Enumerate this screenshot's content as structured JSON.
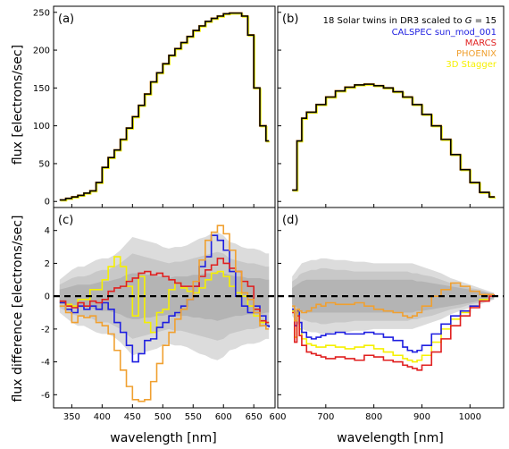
{
  "chart_data": {
    "type": "line",
    "xlabel": "wavelength [nm]",
    "ylabel_top": "flux [electrons/sec]",
    "ylabel_bottom": "flux difference [electrons/sec]",
    "legend_title": "18 Solar twins in DR3 scaled to G = 15",
    "legend_placement": "top-right",
    "grid": false,
    "colors": {
      "data": "#000000",
      "CALSPEC sun_mod_001": "#1f1fe0",
      "MARCS": "#e01f1f",
      "PHOENIX": "#f0a030",
      "3D Stagger": "#f5f000",
      "band_outer": "#dcdcdc",
      "band_mid": "#c8c8c8",
      "band_inner": "#b4b4b4"
    },
    "panels": [
      {
        "id": "a",
        "label": "(a)",
        "band": "BP",
        "xlim": [
          320,
          685
        ],
        "ylim": [
          -8,
          258
        ],
        "xticks": [
          350,
          400,
          450,
          500,
          550,
          600,
          650
        ],
        "yticks": [
          0,
          50,
          100,
          150,
          200,
          250
        ],
        "x": [
          330,
          340,
          350,
          360,
          370,
          380,
          390,
          400,
          410,
          420,
          430,
          440,
          450,
          460,
          470,
          480,
          490,
          500,
          510,
          520,
          530,
          540,
          550,
          560,
          570,
          580,
          590,
          600,
          610,
          620,
          630,
          640,
          650,
          660,
          670,
          675
        ],
        "flux": [
          2,
          4,
          6,
          8,
          11,
          14,
          25,
          45,
          58,
          68,
          82,
          97,
          112,
          127,
          142,
          158,
          170,
          182,
          193,
          202,
          210,
          218,
          226,
          232,
          238,
          242,
          245,
          248,
          249,
          249,
          245,
          220,
          150,
          100,
          80,
          80
        ]
      },
      {
        "id": "b",
        "label": "(b)",
        "band": "RP",
        "xlim": [
          600,
          1070
        ],
        "ylim": [
          -8,
          258
        ],
        "xticks": [
          600,
          700,
          800,
          900,
          1000
        ],
        "yticks": [
          0,
          50,
          100,
          150,
          200,
          250
        ],
        "x": [
          630,
          640,
          650,
          660,
          680,
          700,
          720,
          740,
          760,
          780,
          800,
          820,
          840,
          860,
          880,
          900,
          920,
          940,
          960,
          980,
          1000,
          1020,
          1040,
          1050
        ],
        "flux": [
          15,
          80,
          110,
          118,
          128,
          138,
          146,
          151,
          154,
          155,
          153,
          150,
          145,
          138,
          128,
          115,
          100,
          82,
          62,
          42,
          25,
          12,
          6,
          5
        ]
      },
      {
        "id": "c",
        "label": "(c)",
        "band": "BP",
        "xlim": [
          320,
          685
        ],
        "ylim": [
          -6.8,
          5.4
        ],
        "xticks": [
          350,
          400,
          450,
          500,
          550,
          600,
          650
        ],
        "yticks": [
          -6,
          -4,
          -2,
          0,
          2,
          4
        ],
        "x": [
          330,
          340,
          350,
          360,
          370,
          380,
          390,
          400,
          410,
          420,
          430,
          440,
          450,
          460,
          470,
          480,
          490,
          500,
          510,
          520,
          530,
          540,
          550,
          560,
          570,
          580,
          590,
          600,
          610,
          620,
          630,
          640,
          650,
          660,
          670,
          675
        ],
        "band_outer": [
          1.0,
          1.3,
          1.6,
          1.8,
          1.8,
          2.0,
          2.2,
          2.3,
          2.3,
          2.5,
          2.8,
          3.2,
          3.6,
          3.5,
          3.4,
          3.3,
          3.2,
          3.0,
          2.9,
          3.0,
          3.0,
          3.1,
          3.3,
          3.5,
          3.6,
          3.8,
          3.9,
          3.7,
          3.3,
          3.2,
          3.0,
          2.9,
          2.9,
          2.8,
          2.6,
          2.6
        ],
        "band_mid": [
          0.7,
          0.9,
          1.1,
          1.2,
          1.2,
          1.3,
          1.5,
          1.6,
          1.6,
          1.8,
          2.0,
          2.3,
          2.6,
          2.5,
          2.4,
          2.3,
          2.2,
          2.1,
          2.0,
          2.1,
          2.1,
          2.2,
          2.3,
          2.4,
          2.5,
          2.6,
          2.7,
          2.6,
          2.3,
          2.2,
          2.1,
          2.0,
          2.0,
          1.9,
          1.8,
          1.8
        ],
        "band_inner": [
          0.4,
          0.5,
          0.6,
          0.7,
          0.7,
          0.7,
          0.8,
          0.9,
          0.9,
          1.0,
          1.1,
          1.3,
          1.4,
          1.4,
          1.3,
          1.3,
          1.2,
          1.2,
          1.1,
          1.2,
          1.2,
          1.2,
          1.3,
          1.3,
          1.4,
          1.4,
          1.5,
          1.4,
          1.3,
          1.2,
          1.2,
          1.1,
          1.1,
          1.1,
          1.0,
          1.0
        ],
        "series": [
          {
            "name": "CALSPEC sun_mod_001",
            "values": [
              -0.4,
              -0.8,
              -1.0,
              -0.6,
              -0.8,
              -0.6,
              -0.8,
              -0.4,
              -0.8,
              -1.6,
              -2.2,
              -3.0,
              -4.0,
              -3.5,
              -2.7,
              -2.6,
              -1.9,
              -1.6,
              -1.2,
              -1.0,
              -0.6,
              -0.2,
              0.6,
              1.8,
              2.4,
              3.7,
              3.4,
              2.8,
              1.5,
              0.0,
              -0.6,
              -1.0,
              -0.6,
              -1.2,
              -1.8,
              -1.9
            ]
          },
          {
            "name": "MARCS",
            "values": [
              -0.3,
              -0.6,
              -0.7,
              -0.4,
              -0.6,
              -0.3,
              -0.4,
              -0.2,
              0.3,
              0.5,
              0.6,
              0.9,
              1.1,
              1.4,
              1.5,
              1.3,
              1.4,
              1.2,
              1.0,
              0.8,
              0.6,
              0.6,
              0.6,
              1.2,
              1.6,
              1.9,
              2.3,
              2.0,
              1.7,
              1.5,
              0.9,
              0.6,
              -0.8,
              -1.5,
              -1.6,
              -1.6
            ]
          },
          {
            "name": "PHOENIX",
            "values": [
              -0.6,
              -1.0,
              -1.6,
              -1.2,
              -1.3,
              -1.2,
              -1.6,
              -1.8,
              -2.3,
              -3.3,
              -4.5,
              -5.5,
              -6.3,
              -6.4,
              -6.3,
              -5.2,
              -4.1,
              -3.0,
              -2.2,
              -1.4,
              -0.8,
              -0.2,
              0.9,
              2.2,
              3.4,
              3.9,
              4.3,
              3.8,
              2.8,
              1.5,
              0.2,
              -0.2,
              -1.0,
              -1.8,
              -2.0,
              -2.0
            ]
          },
          {
            "name": "3D Stagger",
            "values": [
              -0.4,
              -0.5,
              -0.6,
              -0.2,
              -0.2,
              0.4,
              0.4,
              1.0,
              1.8,
              2.4,
              1.8,
              0.6,
              -1.2,
              1.2,
              -1.6,
              -2.2,
              -1.0,
              -0.8,
              0.4,
              0.8,
              0.5,
              0.3,
              0.2,
              0.5,
              1.0,
              1.4,
              1.5,
              1.2,
              0.6,
              0.2,
              0.0,
              -0.6,
              -1.2,
              -1.6,
              -1.6,
              -1.6
            ]
          }
        ]
      },
      {
        "id": "d",
        "label": "(d)",
        "band": "RP",
        "xlim": [
          600,
          1070
        ],
        "ylim": [
          -6.8,
          5.4
        ],
        "xticks": [
          600,
          700,
          800,
          900,
          1000
        ],
        "yticks": [
          -6,
          -4,
          -2,
          0,
          2,
          4
        ],
        "x": [
          630,
          635,
          640,
          645,
          650,
          660,
          670,
          680,
          690,
          700,
          720,
          740,
          760,
          780,
          800,
          820,
          840,
          860,
          870,
          880,
          890,
          900,
          920,
          940,
          960,
          980,
          1000,
          1020,
          1040,
          1050
        ],
        "band_outer": [
          1.2,
          1.4,
          1.6,
          1.8,
          2.0,
          2.1,
          2.2,
          2.2,
          2.3,
          2.3,
          2.2,
          2.2,
          2.1,
          2.1,
          2.0,
          2.0,
          2.0,
          2.0,
          2.0,
          2.0,
          1.9,
          1.8,
          1.6,
          1.4,
          1.1,
          0.9,
          0.7,
          0.5,
          0.3,
          0.2
        ],
        "band_mid": [
          0.9,
          1.0,
          1.1,
          1.3,
          1.4,
          1.5,
          1.6,
          1.6,
          1.7,
          1.7,
          1.6,
          1.6,
          1.5,
          1.5,
          1.5,
          1.5,
          1.5,
          1.5,
          1.5,
          1.4,
          1.4,
          1.3,
          1.2,
          1.0,
          0.8,
          0.7,
          0.5,
          0.4,
          0.2,
          0.2
        ],
        "band_inner": [
          0.5,
          0.6,
          0.7,
          0.8,
          0.9,
          1.0,
          1.0,
          1.0,
          1.0,
          1.0,
          1.0,
          1.0,
          1.0,
          1.0,
          1.0,
          1.0,
          1.0,
          1.0,
          1.0,
          1.0,
          0.9,
          0.9,
          0.8,
          0.7,
          0.6,
          0.5,
          0.4,
          0.3,
          0.2,
          0.1
        ],
        "series": [
          {
            "name": "CALSPEC sun_mod_001",
            "values": [
              -0.8,
              -1.8,
              -0.9,
              -1.6,
              -2.2,
              -2.5,
              -2.6,
              -2.5,
              -2.4,
              -2.3,
              -2.2,
              -2.3,
              -2.3,
              -2.2,
              -2.3,
              -2.5,
              -2.7,
              -3.1,
              -3.3,
              -3.4,
              -3.3,
              -3.0,
              -2.3,
              -1.7,
              -1.2,
              -0.9,
              -0.6,
              -0.3,
              0.0,
              0.1
            ]
          },
          {
            "name": "MARCS",
            "values": [
              -1.0,
              -2.8,
              -1.2,
              -2.4,
              -3.0,
              -3.4,
              -3.5,
              -3.6,
              -3.7,
              -3.8,
              -3.7,
              -3.8,
              -3.9,
              -3.6,
              -3.7,
              -3.9,
              -4.0,
              -4.2,
              -4.3,
              -4.4,
              -4.5,
              -4.2,
              -3.4,
              -2.6,
              -1.8,
              -1.2,
              -0.7,
              -0.3,
              0.0,
              0.1
            ]
          },
          {
            "name": "PHOENIX",
            "values": [
              -0.6,
              -1.5,
              -0.8,
              -0.9,
              -1.0,
              -0.9,
              -0.7,
              -0.5,
              -0.6,
              -0.4,
              -0.5,
              -0.5,
              -0.4,
              -0.6,
              -0.8,
              -0.9,
              -1.0,
              -1.2,
              -1.3,
              -1.2,
              -1.0,
              -0.6,
              0.0,
              0.4,
              0.8,
              0.6,
              0.3,
              0.1,
              0.1,
              0.1
            ]
          },
          {
            "name": "3D Stagger",
            "values": [
              -0.9,
              -2.5,
              -1.0,
              -2.0,
              -2.6,
              -2.9,
              -3.0,
              -3.1,
              -3.1,
              -3.0,
              -3.1,
              -3.2,
              -3.1,
              -3.0,
              -3.2,
              -3.4,
              -3.6,
              -3.8,
              -3.9,
              -4.0,
              -3.9,
              -3.6,
              -2.8,
              -2.0,
              -1.4,
              -1.0,
              -0.6,
              -0.2,
              0.0,
              0.1
            ]
          }
        ]
      }
    ]
  }
}
